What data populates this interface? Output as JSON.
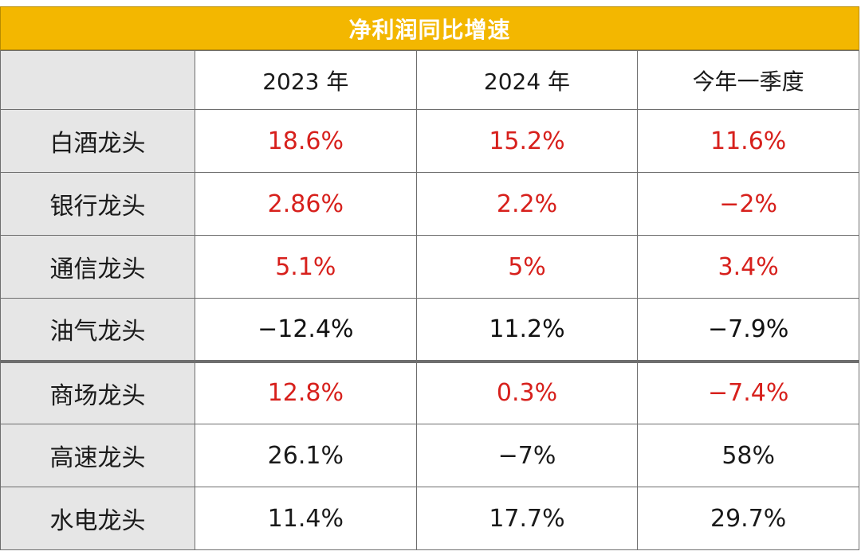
{
  "title": "净利润同比增速",
  "columns": [
    "2023 年",
    "2024 年",
    "今年一季度"
  ],
  "rows": [
    {
      "name": "白酒龙头",
      "values": [
        "18.6%",
        "15.2%",
        "11.6%"
      ],
      "color": "#d7201c"
    },
    {
      "name": "银行龙头",
      "values": [
        "2.86%",
        "2.2%",
        "−2%"
      ],
      "color": "#d7201c"
    },
    {
      "name": "通信龙头",
      "values": [
        "5.1%",
        "5%",
        "3.4%"
      ],
      "color": "#d7201c"
    },
    {
      "name": "油气龙头",
      "values": [
        "−12.4%",
        "11.2%",
        "−7.9%"
      ],
      "color": "#111111"
    },
    {
      "name": "商场龙头",
      "values": [
        "12.8%",
        "0.3%",
        "−7.4%"
      ],
      "color": "#d7201c"
    },
    {
      "name": "高速龙头",
      "values": [
        "26.1%",
        "−7%",
        "58%"
      ],
      "color": "#1a1a1a"
    },
    {
      "name": "水电龙头",
      "values": [
        "11.4%",
        "17.7%",
        "29.7%"
      ],
      "color": "#1a1a1a"
    }
  ],
  "colors": {
    "header_bg": "#f3b700",
    "label_bg": "#e6e6e6",
    "highlight": "#d7201c"
  }
}
